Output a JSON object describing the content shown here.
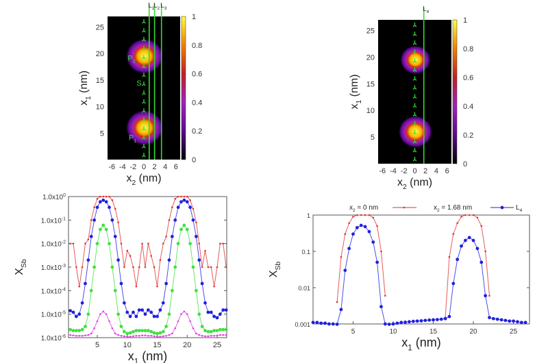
{
  "maps": [
    {
      "type": "heatmap",
      "xlabel": "x",
      "xlabel_sub": "2",
      "xlabel_unit": " (nm)",
      "ylabel": "x",
      "ylabel_sub": "1",
      "ylabel_unit": " (nm)",
      "xlim": [
        -6.8,
        6.8
      ],
      "ylim": [
        0,
        27
      ],
      "xticks": [
        "-6",
        "-4",
        "-2",
        "0",
        "2",
        "4",
        "6"
      ],
      "yticks": [
        "5",
        "10",
        "15",
        "20",
        "25"
      ],
      "colorbar_ticks": [
        "0",
        "0.2",
        "0.4",
        "0.6",
        "0.8",
        "1"
      ],
      "colormap": [
        "#000000",
        "#5a0a8c",
        "#a020c0",
        "#c02020",
        "#f08000",
        "#ffff40"
      ],
      "peaks": [
        {
          "x2": 0,
          "x1": 6,
          "value": 1
        },
        {
          "x2": 0,
          "x1": 19.5,
          "value": 1
        }
      ],
      "cut_lines": [
        {
          "label": "L",
          "sub": "1",
          "x2": 1.0
        },
        {
          "label": "L",
          "sub": "2",
          "x2": 2.0
        },
        {
          "label": "L",
          "sub": "3",
          "x2": 3.3
        }
      ],
      "annotations": [
        {
          "text": "P",
          "sub": "2",
          "x2": -2.3,
          "x1": 19.2
        },
        {
          "text": "S",
          "sub": "",
          "x2": -0.9,
          "x1": 14.5
        },
        {
          "text": "P",
          "sub": "1",
          "x2": -2.1,
          "x1": 4.2
        }
      ],
      "line_color": "#33dd33"
    },
    {
      "type": "heatmap",
      "xlabel": "x",
      "xlabel_sub": "2",
      "xlabel_unit": " (nm)",
      "ylabel": "x",
      "ylabel_sub": "1",
      "ylabel_unit": " (nm)",
      "xlim": [
        -6.8,
        6.8
      ],
      "ylim": [
        0,
        27
      ],
      "xticks": [
        "-6",
        "-4",
        "-2",
        "0",
        "2",
        "4",
        "6"
      ],
      "yticks": [
        "5",
        "10",
        "15",
        "20",
        "25"
      ],
      "colorbar_ticks": [
        "0",
        "0.2",
        "0.4",
        "0.6",
        "0.8",
        "1"
      ],
      "colormap": [
        "#000000",
        "#5a0a8c",
        "#a020c0",
        "#c02020",
        "#f08000",
        "#ffff40"
      ],
      "peaks": [
        {
          "x2": 0,
          "x1": 6,
          "value": 0.9
        },
        {
          "x2": 0,
          "x1": 19.5,
          "value": 0.8
        }
      ],
      "cut_lines": [
        {
          "label": "L",
          "sub": "4",
          "x2": 1.68
        }
      ],
      "annotations": [],
      "line_color": "#33dd33"
    }
  ],
  "chart_data": [
    {
      "type": "line",
      "xlabel": "x",
      "xlabel_sub": "1",
      "xlabel_unit": " (nm)",
      "ylabel": "X",
      "ylabel_sub": "Sb",
      "xlim": [
        0.2,
        26.6
      ],
      "ylim": [
        1e-06,
        1
      ],
      "yscale": "log",
      "xticks": [
        5,
        10,
        15,
        20,
        25
      ],
      "yticks": [
        {
          "value": 1,
          "label": "1.0x10",
          "exp": "0"
        },
        {
          "value": 0.1,
          "label": "1.0x10",
          "exp": "-1"
        },
        {
          "value": 0.01,
          "label": "1.0x10",
          "exp": "-2"
        },
        {
          "value": 0.001,
          "label": "1.0x10",
          "exp": "-3"
        },
        {
          "value": 0.0001,
          "label": "1.0x10",
          "exp": "-4"
        },
        {
          "value": 1e-05,
          "label": "1.0x10",
          "exp": "-5"
        },
        {
          "value": 1e-06,
          "label": "1.0x10",
          "exp": "-6"
        }
      ],
      "x": [
        0,
        0.5,
        1,
        1.5,
        2,
        2.5,
        3,
        3.5,
        4,
        4.5,
        5,
        5.5,
        6,
        6.5,
        7,
        7.5,
        8,
        8.5,
        9,
        9.5,
        10,
        10.5,
        11,
        11.5,
        12,
        12.5,
        13,
        13.5,
        14,
        14.5,
        15,
        15.5,
        16,
        16.5,
        17,
        17.5,
        18,
        18.5,
        19,
        19.5,
        20,
        20.5,
        21,
        21.5,
        22,
        22.5,
        23,
        23.5,
        24,
        24.5,
        25,
        25.5,
        26,
        26.5
      ],
      "series": [
        {
          "color": "#e03030",
          "marker": "small",
          "values": [
            0.003,
            0.01,
            0.01,
            0.001,
            0.00015,
            0.001,
            0.01,
            0.015,
            0.1,
            0.35,
            0.8,
            1,
            1,
            1,
            1,
            0.7,
            0.3,
            0.08,
            0.01,
            0.001,
            0.005,
            0.003,
            0.001,
            0.00015,
            0.001,
            0.01,
            0.001,
            0.01,
            0.003,
            0.001,
            0.00015,
            0.002,
            0.01,
            0.02,
            0.1,
            0.35,
            0.8,
            1,
            1,
            1,
            1,
            0.7,
            0.3,
            0.08,
            0.01,
            0.001,
            0.005,
            0.001,
            0.001,
            0.00015,
            0.001,
            0.01,
            0.01,
            0.001
          ]
        },
        {
          "color": "#2020e0",
          "marker": "large",
          "values": [
            1.5e-05,
            1.4e-05,
            1.2e-05,
            8e-06,
            1e-05,
            3e-05,
            0.0002,
            0.002,
            0.02,
            0.1,
            0.35,
            0.6,
            0.7,
            0.6,
            0.35,
            0.1,
            0.02,
            0.002,
            0.0002,
            3e-05,
            1.2e-05,
            8e-06,
            1.2e-05,
            8e-06,
            1.5e-05,
            1.5e-05,
            1e-05,
            1.5e-05,
            1.2e-05,
            8e-06,
            8e-06,
            1.5e-05,
            3e-05,
            0.0002,
            0.002,
            0.02,
            0.1,
            0.35,
            0.6,
            0.7,
            0.6,
            0.35,
            0.1,
            0.02,
            0.002,
            0.0002,
            3e-05,
            1.2e-05,
            1.2e-05,
            8e-06,
            7e-06,
            1e-05,
            1.5e-05,
            1.5e-05
          ]
        },
        {
          "color": "#40e040",
          "marker": "large",
          "values": [
            2.2e-06,
            2.2e-06,
            2e-06,
            2e-06,
            2e-06,
            2.2e-06,
            3e-06,
            1e-05,
            0.0001,
            0.001,
            0.01,
            0.04,
            0.06,
            0.04,
            0.01,
            0.001,
            0.0001,
            1e-05,
            3e-06,
            1.8e-06,
            1.5e-06,
            1.6e-06,
            1.8e-06,
            2e-06,
            2e-06,
            2e-06,
            2e-06,
            2e-06,
            1.8e-06,
            1.6e-06,
            1.5e-06,
            1.6e-06,
            1.8e-06,
            3e-06,
            1e-05,
            0.0001,
            0.001,
            0.01,
            0.04,
            0.06,
            0.04,
            0.01,
            0.001,
            0.0001,
            1e-05,
            3e-06,
            2e-06,
            1.8e-06,
            1.8e-06,
            2e-06,
            2e-06,
            2.2e-06,
            2.2e-06,
            2.2e-06
          ]
        },
        {
          "color": "#e040e0",
          "marker": "small",
          "values": [
            1.3e-06,
            1.3e-06,
            1.25e-06,
            1.2e-06,
            1.2e-06,
            1.2e-06,
            1.25e-06,
            1.3e-06,
            1.5e-06,
            2.5e-06,
            5e-06,
            1e-05,
            1.3e-05,
            1e-05,
            5e-06,
            2.5e-06,
            1.5e-06,
            1.3e-06,
            1.2e-06,
            1.15e-06,
            1.1e-06,
            1.1e-06,
            1.15e-06,
            1.2e-06,
            1.2e-06,
            1.25e-06,
            1.25e-06,
            1.2e-06,
            1.2e-06,
            1.15e-06,
            1.1e-06,
            1.1e-06,
            1.15e-06,
            1.2e-06,
            1.3e-06,
            1.5e-06,
            2.5e-06,
            5e-06,
            1e-05,
            1.3e-05,
            1e-05,
            5e-06,
            2.5e-06,
            1.5e-06,
            1.3e-06,
            1.2e-06,
            1.15e-06,
            1.15e-06,
            1.2e-06,
            1.2e-06,
            1.25e-06,
            1.3e-06,
            1.3e-06,
            1.3e-06
          ]
        }
      ]
    },
    {
      "type": "line",
      "xlabel": "x",
      "xlabel_sub": "1",
      "xlabel_unit": " (nm)",
      "ylabel": "X",
      "ylabel_sub": "Sb",
      "xlim": [
        0,
        27
      ],
      "ylim": [
        0.001,
        1
      ],
      "yscale": "log",
      "xticks": [
        5,
        10,
        15,
        20,
        25
      ],
      "yticks": [
        {
          "value": 1,
          "label": "1",
          "exp": ""
        },
        {
          "value": 0.1,
          "label": "0.1",
          "exp": ""
        },
        {
          "value": 0.01,
          "label": "0.01",
          "exp": ""
        },
        {
          "value": 0.001,
          "label": "0.001",
          "exp": ""
        }
      ],
      "legend": {
        "position": "top",
        "entries": [
          {
            "label": "x",
            "sub": "2",
            "rest": " = 0 nm",
            "color": "#e03030"
          },
          {
            "label": "x",
            "sub": "2",
            "rest": " = 1.68 nm",
            "color": "#2020e0"
          },
          {
            "label": "L",
            "sub": "4",
            "rest": "",
            "color": "#2020e0"
          }
        ]
      },
      "x": [
        0,
        0.5,
        1,
        1.5,
        2,
        2.5,
        3,
        3.5,
        4,
        4.5,
        5,
        5.5,
        6,
        6.5,
        7,
        7.5,
        8,
        8.5,
        9,
        9.5,
        10,
        10.5,
        11,
        11.5,
        12,
        12.5,
        13,
        13.5,
        14,
        14.5,
        15,
        15.5,
        16,
        16.5,
        17,
        17.5,
        18,
        18.5,
        19,
        19.5,
        20,
        20.5,
        21,
        21.5,
        22,
        22.5,
        23,
        23.5,
        24,
        24.5,
        25,
        25.5,
        26,
        26.5
      ],
      "series": [
        {
          "name": "x2 = 0 nm",
          "color": "#e03030",
          "marker": "small",
          "values": [
            null,
            null,
            null,
            null,
            null,
            null,
            0.004,
            0.07,
            0.3,
            0.6,
            0.9,
            1,
            1,
            1,
            1,
            0.85,
            0.5,
            0.1,
            0.006,
            null,
            null,
            null,
            null,
            null,
            null,
            null,
            null,
            null,
            null,
            null,
            null,
            null,
            null,
            0.0015,
            0.07,
            0.3,
            0.6,
            0.9,
            1,
            1,
            1,
            0.85,
            0.5,
            0.1,
            0.006,
            null,
            null,
            null,
            null,
            null,
            null,
            null,
            null,
            null
          ]
        },
        {
          "name": "x2 = 1.68 nm  L4",
          "color": "#2020e0",
          "marker": "large",
          "values": [
            0.0011,
            0.0011,
            0.00105,
            0.00105,
            0.001,
            0.001,
            0.00095,
            0.0025,
            0.03,
            0.12,
            0.3,
            0.45,
            0.52,
            0.48,
            0.35,
            0.18,
            0.05,
            0.003,
            0.001,
            0.00098,
            0.001,
            0.00105,
            0.0011,
            0.00112,
            0.00115,
            0.00118,
            0.0012,
            0.00122,
            0.00125,
            0.00128,
            0.0013,
            0.00132,
            0.00135,
            0.0014,
            0.0016,
            0.013,
            0.06,
            0.14,
            0.2,
            0.24,
            0.2,
            0.12,
            0.05,
            0.006,
            0.0015,
            0.0014,
            0.00135,
            0.0013,
            0.00125,
            0.0012,
            0.0012,
            0.00115,
            0.0011,
            0.0011
          ]
        }
      ]
    }
  ]
}
